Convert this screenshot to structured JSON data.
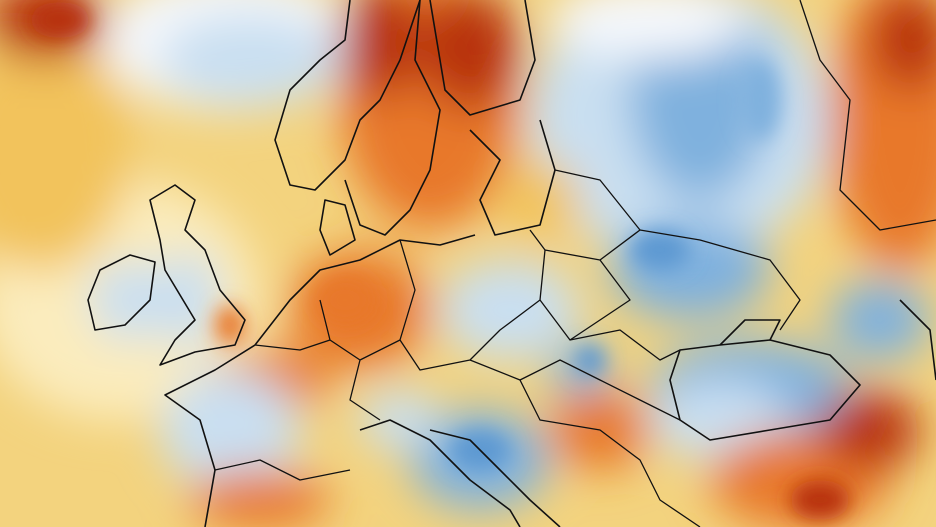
{
  "map": {
    "palette": {
      "background": "#f3d37e",
      "cream": "#fbecbd",
      "yellow": "#f2c35c",
      "orange": "#e8782a",
      "deep_red": "#b8310f",
      "white": "#f4f7fb",
      "light_blue": "#c9dff1",
      "blue": "#7fb1de",
      "deep_blue": "#5d99d2"
    }
  }
}
